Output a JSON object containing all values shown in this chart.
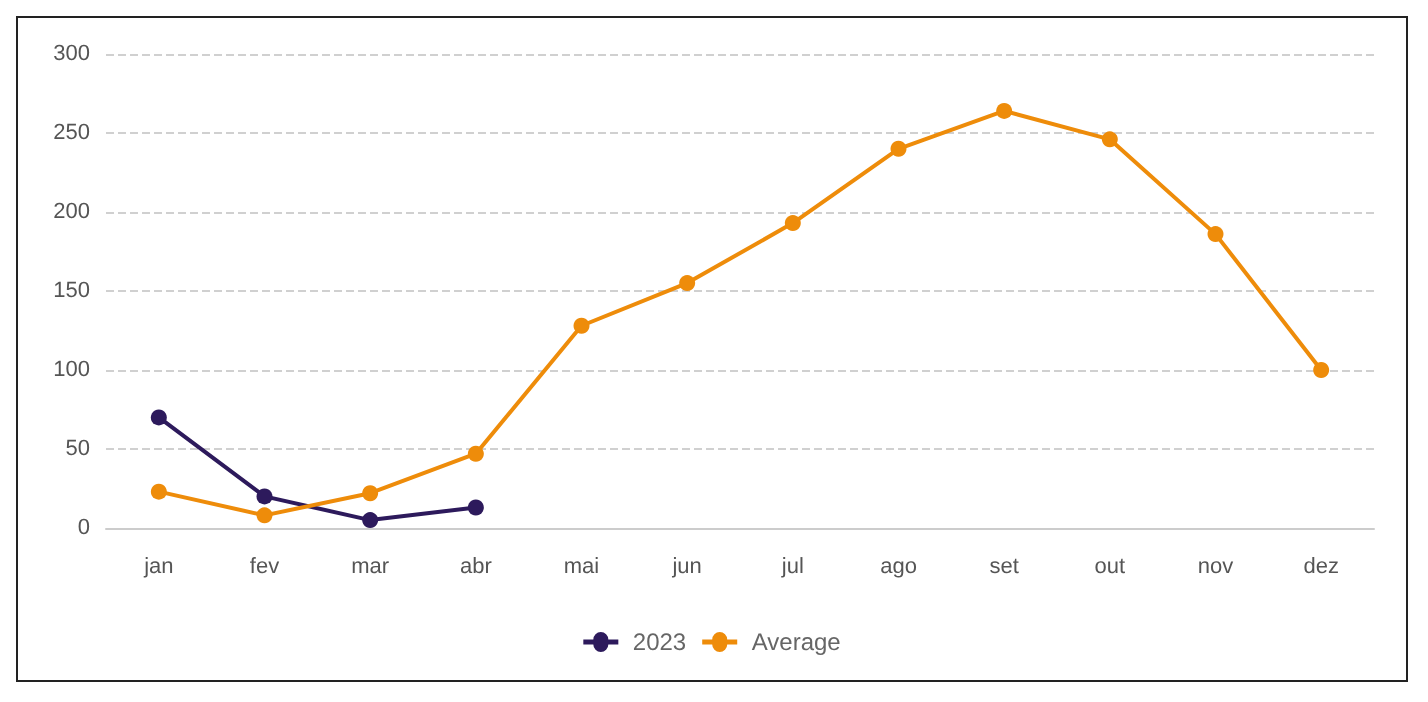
{
  "chart_data": {
    "type": "line",
    "categories": [
      "jan",
      "fev",
      "mar",
      "abr",
      "mai",
      "jun",
      "jul",
      "ago",
      "set",
      "out",
      "nov",
      "dez"
    ],
    "series": [
      {
        "name": "2023",
        "color": "#2d1a5c",
        "values": [
          70,
          20,
          5,
          13,
          null,
          null,
          null,
          null,
          null,
          null,
          null,
          null
        ]
      },
      {
        "name": "Average",
        "color": "#ee8c0a",
        "values": [
          23,
          8,
          22,
          47,
          128,
          155,
          193,
          240,
          264,
          246,
          186,
          100
        ]
      }
    ],
    "ylim": [
      0,
      300
    ],
    "yticks": [
      0,
      50,
      100,
      150,
      200,
      250,
      300
    ],
    "grid": "y",
    "legend": "bottom",
    "marker": "circle",
    "line_style": "solid"
  }
}
